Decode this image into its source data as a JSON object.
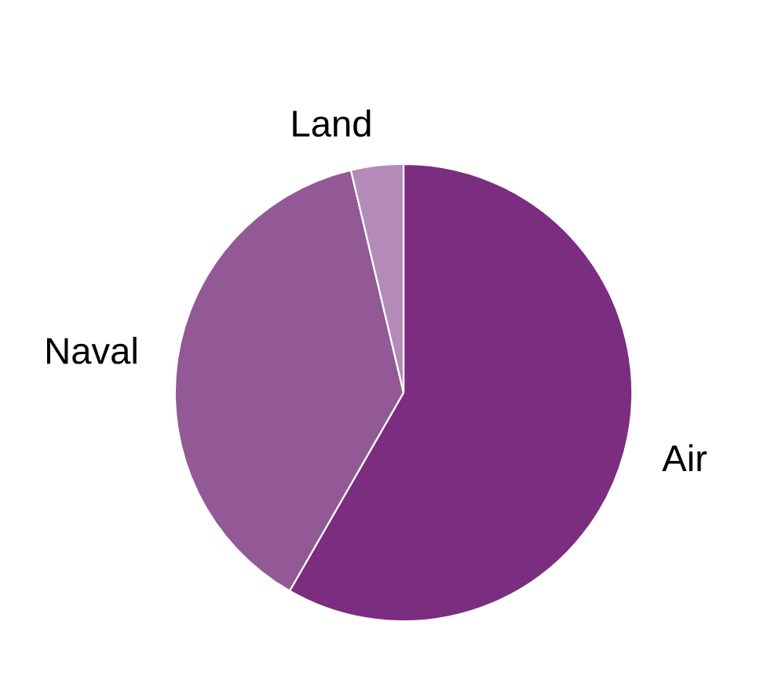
{
  "chart_data": {
    "type": "pie",
    "categories": [
      "Air",
      "Naval",
      "Land"
    ],
    "values": [
      58.3,
      38,
      3.7
    ],
    "colors": [
      "#7b2d7f",
      "#935896",
      "#b48bb8"
    ],
    "legend": false
  }
}
